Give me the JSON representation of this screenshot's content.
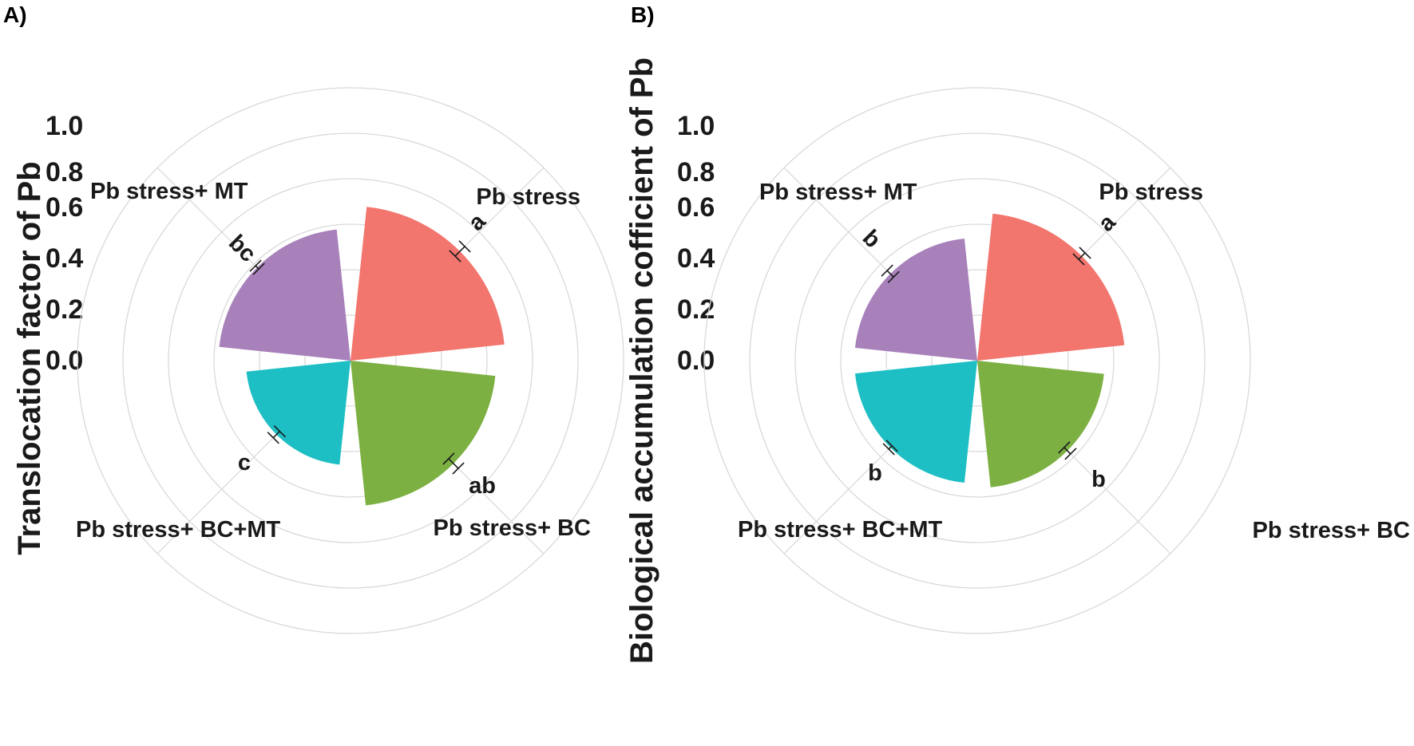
{
  "chart_data": [
    {
      "type": "polar-bar",
      "panel_label": "A)",
      "title": "",
      "ylabel": "Translocation factor of Pb",
      "r_ticks": [
        "0.0",
        "0.2",
        "0.4",
        "0.6",
        "0.8",
        "1.0"
      ],
      "rlim": [
        -0.2,
        1.0
      ],
      "categories": [
        "Pb stress",
        "Pb stress+ BC",
        "Pb stress+ BC+MT",
        "Pb stress+ MT"
      ],
      "values": [
        0.48,
        0.44,
        0.26,
        0.38
      ],
      "errors": [
        0.03,
        0.03,
        0.02,
        0.01
      ],
      "letters": [
        "a",
        "ab",
        "c",
        "bc"
      ],
      "colors": [
        "#F2756E",
        "#7DB043",
        "#1EBFC4",
        "#A881BB"
      ]
    },
    {
      "type": "polar-bar",
      "panel_label": "B)",
      "title": "",
      "ylabel": "Biological accumulation cofficient of Pb",
      "r_ticks": [
        "0.0",
        "0.2",
        "0.4",
        "0.6",
        "0.8",
        "1.0"
      ],
      "rlim": [
        -0.2,
        1.0
      ],
      "categories": [
        "Pb stress",
        "Pb stress+ BC",
        "Pb stress+ BC+MT",
        "Pb stress+ MT"
      ],
      "values": [
        0.45,
        0.36,
        0.34,
        0.34
      ],
      "errors": [
        0.02,
        0.02,
        0.01,
        0.02
      ],
      "letters": [
        "a",
        "b",
        "b",
        "b"
      ],
      "colors": [
        "#F2756E",
        "#7DB043",
        "#1EBFC4",
        "#A881BB"
      ]
    }
  ]
}
